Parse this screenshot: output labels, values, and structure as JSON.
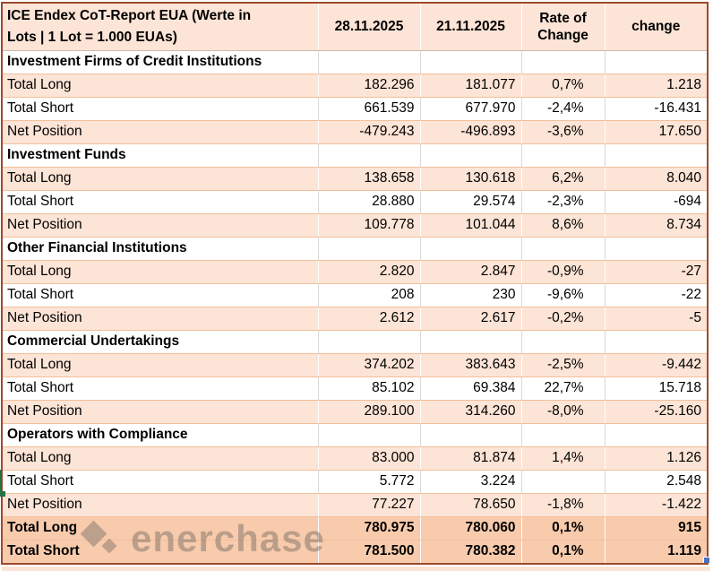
{
  "header": {
    "title_line1": "ICE Endex CoT-Report EUA (Werte in",
    "title_line2": "Lots | 1 Lot = 1.000 EUAs)",
    "columns": [
      "28.11.2025",
      "21.11.2025",
      "Rate of Change",
      "change"
    ]
  },
  "rows": [
    {
      "type": "section",
      "label": "Investment Firms of Credit Institutions"
    },
    {
      "type": "data",
      "label": "Total Long",
      "v1": "182.296",
      "v2": "181.077",
      "rate": "0,7%",
      "change": "1.218"
    },
    {
      "type": "data",
      "label": "Total Short",
      "v1": "661.539",
      "v2": "677.970",
      "rate": "-2,4%",
      "change": "-16.431"
    },
    {
      "type": "data",
      "label": "Net Position",
      "v1": "-479.243",
      "v2": "-496.893",
      "rate": "-3,6%",
      "change": "17.650"
    },
    {
      "type": "section",
      "label": "Investment Funds"
    },
    {
      "type": "data",
      "label": "Total Long",
      "v1": "138.658",
      "v2": "130.618",
      "rate": "6,2%",
      "change": "8.040"
    },
    {
      "type": "data",
      "label": "Total Short",
      "v1": "28.880",
      "v2": "29.574",
      "rate": "-2,3%",
      "change": "-694"
    },
    {
      "type": "data",
      "label": "Net Position",
      "v1": "109.778",
      "v2": "101.044",
      "rate": "8,6%",
      "change": "8.734"
    },
    {
      "type": "section",
      "label": "Other Financial Institutions"
    },
    {
      "type": "data",
      "label": "Total Long",
      "v1": "2.820",
      "v2": "2.847",
      "rate": "-0,9%",
      "change": "-27"
    },
    {
      "type": "data",
      "label": "Total Short",
      "v1": "208",
      "v2": "230",
      "rate": "-9,6%",
      "change": "-22"
    },
    {
      "type": "data",
      "label": "Net Position",
      "v1": "2.612",
      "v2": "2.617",
      "rate": "-0,2%",
      "change": "-5"
    },
    {
      "type": "section",
      "label": "Commercial Undertakings"
    },
    {
      "type": "data",
      "label": "Total Long",
      "v1": "374.202",
      "v2": "383.643",
      "rate": "-2,5%",
      "change": "-9.442"
    },
    {
      "type": "data",
      "label": "Total Short",
      "v1": "85.102",
      "v2": "69.384",
      "rate": "22,7%",
      "change": "15.718"
    },
    {
      "type": "data",
      "label": "Net Position",
      "v1": "289.100",
      "v2": "314.260",
      "rate": "-8,0%",
      "change": "-25.160"
    },
    {
      "type": "section",
      "label": "Operators with Compliance"
    },
    {
      "type": "data",
      "label": "Total Long",
      "v1": "83.000",
      "v2": "81.874",
      "rate": "1,4%",
      "change": "1.126"
    },
    {
      "type": "data",
      "label": "Total Short",
      "v1": "5.772",
      "v2": "3.224",
      "rate": "",
      "change": "2.548"
    },
    {
      "type": "data",
      "label": "Net Position",
      "v1": "77.227",
      "v2": "78.650",
      "rate": "-1,8%",
      "change": "-1.422"
    },
    {
      "type": "total",
      "label": "Total Long",
      "v1": "780.975",
      "v2": "780.060",
      "rate": "0,1%",
      "change": "915"
    },
    {
      "type": "total",
      "label": "Total Short",
      "v1": "781.500",
      "v2": "780.382",
      "rate": "0,1%",
      "change": "1.119"
    }
  ],
  "watermark": {
    "text": "enerchase"
  },
  "colors": {
    "row_peach": "#fce4d6",
    "row_white": "#ffffff",
    "total_row_peach": "#f8cbad",
    "outer_border": "#9c4a2c",
    "grid_line_orange": "#f2c09b",
    "excel_selection_green": "#217346",
    "fill_handle_blue": "#4a70c0",
    "watermark_gray": "#645f5a"
  }
}
